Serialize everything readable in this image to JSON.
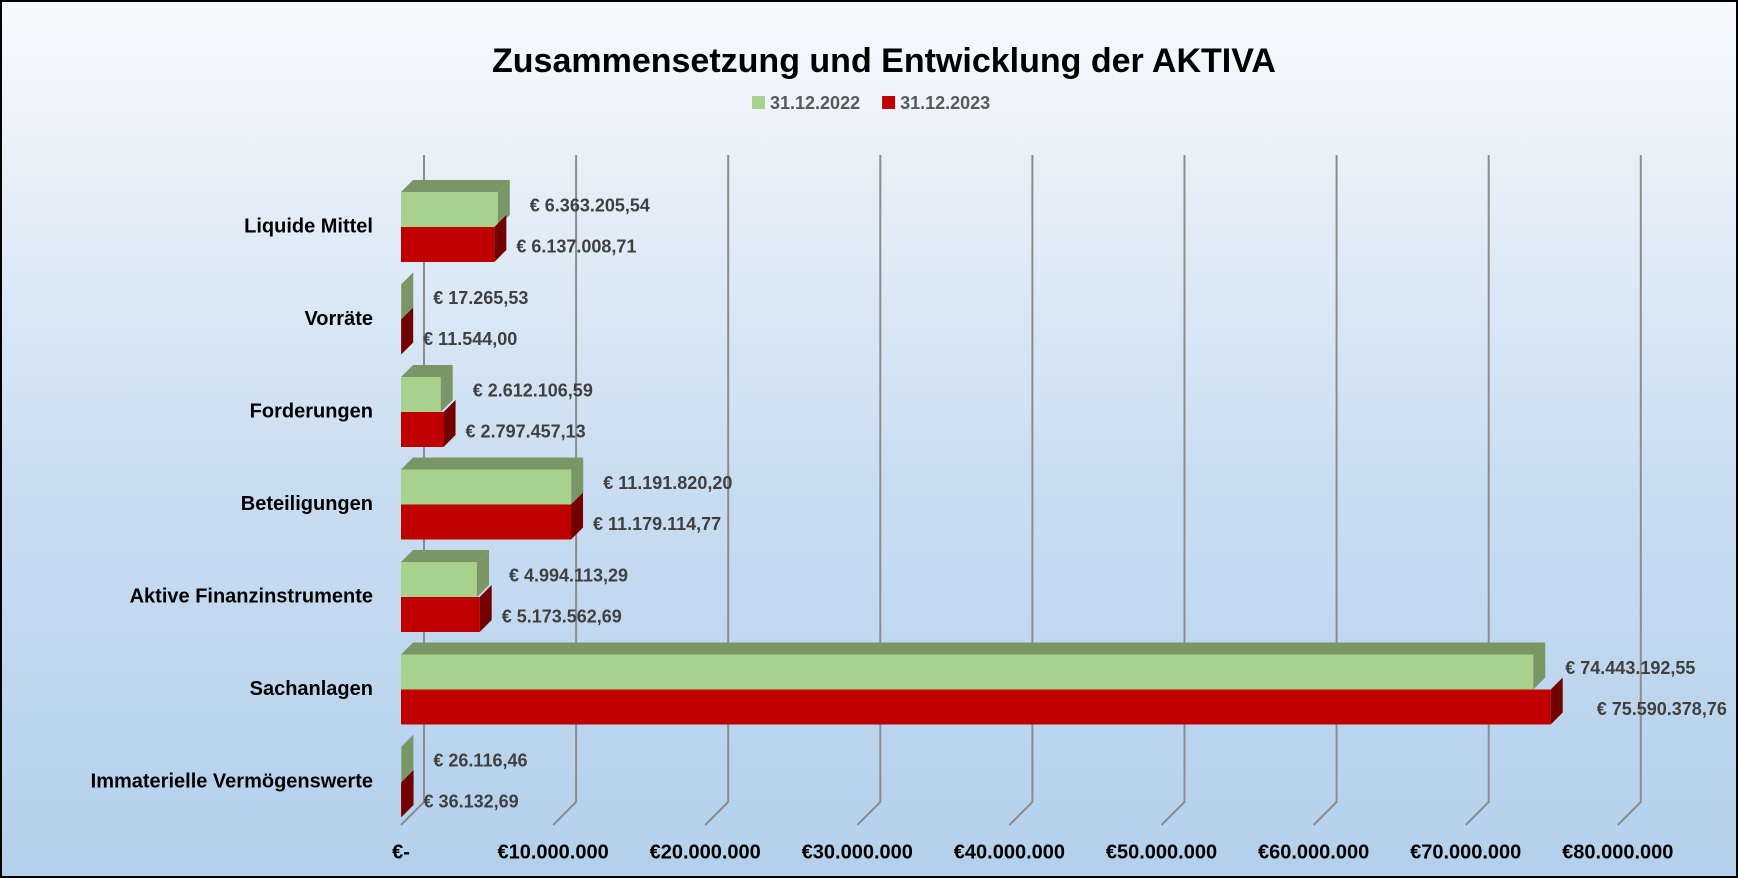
{
  "chart_data": {
    "type": "bar",
    "orientation": "horizontal",
    "title": "Zusammensetzung und Entwicklung der AKTIVA",
    "categories": [
      "Liquide Mittel",
      "Vorräte",
      "Forderungen",
      "Beteiligungen",
      "Aktive Finanzinstrumente",
      "Sachanlagen",
      "Immaterielle Vermögenswerte"
    ],
    "series": [
      {
        "name": "31.12.2022",
        "color": "#a9d18e",
        "values": [
          6363205.54,
          17265.53,
          2612106.59,
          11191820.2,
          4994113.29,
          74443192.55,
          26116.46
        ],
        "value_labels": [
          "€ 6.363.205,54",
          "€ 17.265,53",
          "€ 2.612.106,59",
          "€ 11.191.820,20",
          "€ 4.994.113,29",
          "€ 74.443.192,55",
          "€ 26.116,46"
        ]
      },
      {
        "name": "31.12.2023",
        "color": "#c00000",
        "values": [
          6137008.71,
          11544.0,
          2797457.13,
          11179114.77,
          5173562.69,
          75590378.76,
          36132.69
        ],
        "value_labels": [
          "€ 6.137.008,71",
          "€ 11.544,00",
          "€ 2.797.457,13",
          "€ 11.179.114,77",
          "€ 5.173.562,69",
          "€ 75.590.378,76",
          "€ 36.132,69"
        ]
      }
    ],
    "xlim": [
      0,
      80000000
    ],
    "xticks": [
      {
        "value": 0,
        "label": "€-"
      },
      {
        "value": 10000000,
        "label": "€10.000.000"
      },
      {
        "value": 20000000,
        "label": "€20.000.000"
      },
      {
        "value": 30000000,
        "label": "€30.000.000"
      },
      {
        "value": 40000000,
        "label": "€40.000.000"
      },
      {
        "value": 50000000,
        "label": "€50.000.000"
      },
      {
        "value": 60000000,
        "label": "€60.000.000"
      },
      {
        "value": 70000000,
        "label": "€70.000.000"
      },
      {
        "value": 80000000,
        "label": "€80.000.000"
      }
    ],
    "grid": true,
    "legend": "top"
  }
}
